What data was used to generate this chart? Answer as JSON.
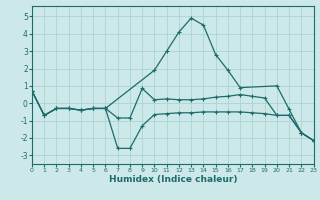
{
  "xlabel": "Humidex (Indice chaleur)",
  "bg_color": "#cce8e8",
  "grid_color": "#aad4d4",
  "line_color": "#1e6b6b",
  "xlim": [
    0,
    23
  ],
  "ylim": [
    -3.5,
    5.6
  ],
  "yticks": [
    -3,
    -2,
    -1,
    0,
    1,
    2,
    3,
    4,
    5
  ],
  "xticks": [
    0,
    1,
    2,
    3,
    4,
    5,
    6,
    7,
    8,
    9,
    10,
    11,
    12,
    13,
    14,
    15,
    16,
    17,
    18,
    19,
    20,
    21,
    22,
    23
  ],
  "seriesA_x": [
    0,
    1,
    2,
    3,
    4,
    5,
    6,
    10,
    11,
    12,
    13,
    14,
    15,
    16,
    17,
    20,
    21,
    22,
    23
  ],
  "seriesA_y": [
    0.7,
    -0.7,
    -0.3,
    -0.3,
    -0.4,
    -0.3,
    -0.3,
    1.9,
    3.0,
    4.1,
    4.9,
    4.5,
    2.8,
    1.9,
    0.9,
    1.0,
    -0.35,
    -1.7,
    -2.15
  ],
  "seriesB_x": [
    0,
    1,
    2,
    3,
    4,
    5,
    6,
    7,
    8,
    9,
    10,
    11,
    12,
    13,
    14,
    15,
    16,
    17,
    18,
    19,
    20,
    21,
    22,
    23
  ],
  "seriesB_y": [
    0.7,
    -0.7,
    -0.3,
    -0.3,
    -0.4,
    -0.3,
    -0.3,
    -2.6,
    -2.6,
    -1.3,
    -0.65,
    -0.6,
    -0.55,
    -0.55,
    -0.5,
    -0.5,
    -0.5,
    -0.5,
    -0.55,
    -0.6,
    -0.7,
    -0.7,
    -1.7,
    -2.15
  ],
  "seriesC_x": [
    0,
    1,
    2,
    3,
    4,
    5,
    6,
    7,
    8,
    9,
    10,
    11,
    12,
    13,
    14,
    15,
    16,
    17,
    18,
    19,
    20,
    21,
    22,
    23
  ],
  "seriesC_y": [
    0.7,
    -0.7,
    -0.3,
    -0.3,
    -0.4,
    -0.3,
    -0.3,
    -0.85,
    -0.85,
    0.85,
    0.2,
    0.25,
    0.2,
    0.2,
    0.25,
    0.35,
    0.4,
    0.5,
    0.4,
    0.3,
    -0.7,
    -0.7,
    -1.7,
    -2.15
  ]
}
